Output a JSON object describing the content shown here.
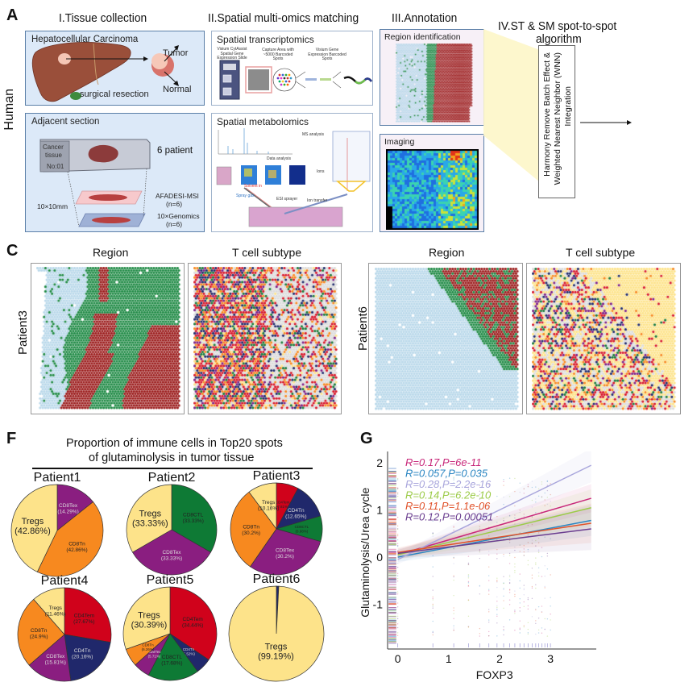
{
  "figure": {
    "panels": {
      "A": {
        "letter": "A",
        "side_label": "Human",
        "sections": {
          "tissue": {
            "title": "I.Tissue collection",
            "hcc_box": {
              "label": "Hepatocellular Carcinoma",
              "tumor": "Tumor",
              "normal": "Normal",
              "resection": "surgical resection"
            },
            "adjacent_box": {
              "label": "Adjacent section",
              "slide_text": [
                "Cancer",
                "tissue",
                "No:01"
              ],
              "patients": "6 patient",
              "size": "10×10mm",
              "msi": "AFADESI-MSI",
              "msi_n": "(n=6)",
              "genomics": "10×Genomics",
              "genomics_n": "(n=6)"
            }
          },
          "multiomics": {
            "title": "II.Spatial multi-omics matching",
            "st_box": {
              "label": "Spatial transcriptomics",
              "captions": [
                "Visium CytAssist Spatial Gene Expression Slide",
                "Capture Area with ~5000 Barcoded Spots",
                "Visium Gene Expression Barcoded Spots"
              ],
              "small_notes": [
                "Fiducial Frame 8 mm x 8 mm",
                "Capture Area 6.5 mm x 6.5 mm",
                "6.5 mm Slide",
                "100 µm",
                "55 µm",
                "Partial Read 1",
                "Spatial Barcode",
                "UMI",
                "Poly(dT)VN"
              ]
            },
            "sm_box": {
              "label": "Spatial metabolomics",
              "notes": [
                "MS analysis",
                "Data analysis",
                "Ions",
                "Solvent in",
                "Spray gas",
                "ESI sprayer",
                "Ion transfer"
              ]
            }
          },
          "annotation": {
            "title": "III.Annotation",
            "region_box": {
              "label": "Region identification"
            },
            "imaging_box": {
              "label": "Imaging"
            }
          },
          "algorithm": {
            "title_line1": "IV.ST & SM spot-to-spot",
            "title_line2": "algorithm",
            "box_text_line1": "Harmony Remove Batch Effect &",
            "box_text_line2": "Weighted Nearest Neighbor (WNN)",
            "box_text_line3": "Integration"
          }
        }
      },
      "C": {
        "letter": "C",
        "groups": [
          {
            "patient": "Patient3",
            "region_title": "Region",
            "subtype_title": "T cell subtype"
          },
          {
            "patient": "Patient6",
            "region_title": "Region",
            "subtype_title": "T cell subtype"
          }
        ],
        "colors": {
          "region_normal": "#b9d8ea",
          "region_boundary": "#1f8a45",
          "region_tumor": "#9b1b1b",
          "subtypes": {
            "Tregs": "#fde38a",
            "CD8Tn": "#f7891f",
            "CD4Tem": "#d7182a",
            "CD4Tn": "#1f2a6b",
            "CD8CTL": "#1a7a3a",
            "CD8Tex": "#7d1f86",
            "background": "#dcdcdc"
          }
        }
      },
      "F": {
        "letter": "F",
        "title_line1": "Proportion of immune cells in Top20 spots",
        "title_line2": "of glutaminolysis in tumor tissue"
      },
      "G": {
        "letter": "G"
      }
    }
  },
  "chart_data": [
    {
      "type": "pie",
      "title": "Proportion of immune cells in Top20 spots of glutaminolysis in tumor tissue",
      "slice_colors": {
        "Tregs": "#fde38a",
        "CD8Tn": "#f7891f",
        "CD4Tem": "#d0021b",
        "CD4Tn": "#20286b",
        "CD8CTL": "#0e7a35",
        "CD8Tex": "#8a1e80"
      },
      "pies": [
        {
          "name": "Patient1",
          "slices": [
            {
              "label": "CD8Tex",
              "value": 14.29,
              "text": "(14.29%)"
            },
            {
              "label": "CD8Tn",
              "value": 42.86,
              "text": "(42.86%)"
            },
            {
              "label": "Tregs",
              "value": 42.86,
              "text": "(42.86%)"
            }
          ]
        },
        {
          "name": "Patient2",
          "slices": [
            {
              "label": "CD8CTL",
              "value": 33.33,
              "text": "(33.33%)"
            },
            {
              "label": "CD8Tex",
              "value": 33.33,
              "text": "(33.33%)"
            },
            {
              "label": "Tregs",
              "value": 33.33,
              "text": "(33.33%)"
            }
          ]
        },
        {
          "name": "Patient3",
          "slices": [
            {
              "label": "CD4Tem",
              "value": 7.81,
              "text": "(7.81%)"
            },
            {
              "label": "CD4Tn",
              "value": 12.65,
              "text": "(12.65%)"
            },
            {
              "label": "CD8CTL",
              "value": 8.98,
              "text": "(8.98%)"
            },
            {
              "label": "CD8Tex",
              "value": 30.2,
              "text": "(30.2%)"
            },
            {
              "label": "CD8Tn",
              "value": 30.2,
              "text": "(30.2%)"
            },
            {
              "label": "Tregs",
              "value": 10.16,
              "text": "(10.16%)"
            }
          ]
        },
        {
          "name": "Patient4",
          "slices": [
            {
              "label": "CD4Tem",
              "value": 27.67,
              "text": "(27.67%)"
            },
            {
              "label": "CD4Tn",
              "value": 20.16,
              "text": "(20.16%)"
            },
            {
              "label": "CD8Tex",
              "value": 15.81,
              "text": "(15.81%)"
            },
            {
              "label": "CD8Tn",
              "value": 24.9,
              "text": "(24.9%)"
            },
            {
              "label": "Tregs",
              "value": 11.46,
              "text": "(11.46%)"
            }
          ]
        },
        {
          "name": "Patient5",
          "slices": [
            {
              "label": "CD4Tem",
              "value": 34.44,
              "text": "(34.44%)"
            },
            {
              "label": "CD4Tn",
              "value": 5.52,
              "text": "(5.52%)"
            },
            {
              "label": "CD8CTL",
              "value": 17.68,
              "text": "(17.68%)"
            },
            {
              "label": "CD8Tex",
              "value": 5.71,
              "text": "(5.71%)"
            },
            {
              "label": "CD8Tn",
              "value": 6.26,
              "text": "(6.26%)"
            },
            {
              "label": "Tregs",
              "value": 30.39,
              "text": "(30.39%)"
            }
          ]
        },
        {
          "name": "Patient6",
          "slices": [
            {
              "label": "CD4Tn",
              "value": 0.81,
              "text": ""
            },
            {
              "label": "Tregs",
              "value": 99.19,
              "text": "(99.19%)"
            }
          ]
        }
      ]
    },
    {
      "type": "scatter",
      "title": "",
      "xlabel": "FOXP3",
      "ylabel": "Glutaminolysis/Urea cycle",
      "xlim": [
        -0.2,
        3.9
      ],
      "ylim": [
        -1.95,
        2.5
      ],
      "xticks": [
        0,
        1,
        2,
        3
      ],
      "yticks": [
        -1,
        0,
        1,
        2
      ],
      "grid": false,
      "legend_position": "top-left",
      "series": [
        {
          "name": "R=0.17,P=6e-11",
          "color": "#c8287a",
          "fit_start": [
            0,
            0.05
          ],
          "fit_end": [
            3.8,
            1.25
          ]
        },
        {
          "name": "R=0.057,P=0.035",
          "color": "#2b86c2",
          "fit_start": [
            0,
            0.0
          ],
          "fit_end": [
            3.8,
            0.78
          ]
        },
        {
          "name": "R=0.28,P=2.2e-16",
          "color": "#a9a6dc",
          "fit_start": [
            0,
            -0.05
          ],
          "fit_end": [
            3.8,
            1.95
          ]
        },
        {
          "name": "R=0.14,P=6.2e-10",
          "color": "#9ccb48",
          "fit_start": [
            0,
            0.05
          ],
          "fit_end": [
            3.8,
            1.05
          ]
        },
        {
          "name": "R=0.11,P=1.1e-06",
          "color": "#e0522a",
          "fit_start": [
            0,
            0.1
          ],
          "fit_end": [
            3.8,
            0.72
          ]
        },
        {
          "name": "R=0.12,P=0.00051",
          "color": "#6a3d8f",
          "fit_start": [
            0,
            0.08
          ],
          "fit_end": [
            3.8,
            0.6
          ]
        }
      ],
      "discrete_x_levels": [
        0,
        0.69,
        1.1,
        1.39,
        1.61,
        1.79,
        1.95,
        2.08,
        2.2,
        2.3,
        2.4,
        2.48,
        2.56,
        2.64,
        2.71,
        2.77,
        2.83,
        2.89,
        2.94,
        3.0
      ]
    }
  ]
}
